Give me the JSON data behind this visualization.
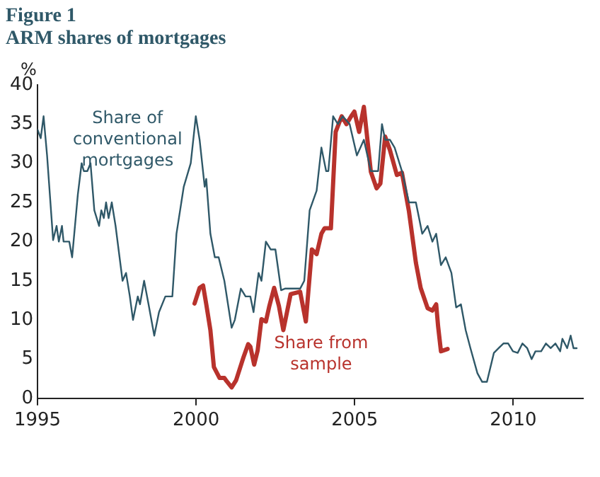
{
  "chart_data": {
    "type": "line",
    "title": "Figure 1",
    "subtitle": "ARM shares of mortgages",
    "ylabel": "%",
    "xlim": [
      1995,
      2012.2
    ],
    "xticks": [
      1995,
      2000,
      2005,
      2010
    ],
    "ylim": [
      0,
      40
    ],
    "yticks": [
      0,
      5,
      10,
      15,
      20,
      25,
      30,
      35,
      40
    ],
    "grid": false,
    "legend": false,
    "marker": "none",
    "line_style": "solid",
    "series": [
      {
        "name": "Share of conventional mortgages",
        "color": "#2f5868",
        "x": [
          1995.0,
          1995.1,
          1995.19,
          1995.3,
          1995.49,
          1995.6,
          1995.67,
          1995.77,
          1995.82,
          1996.0,
          1996.09,
          1996.27,
          1996.39,
          1996.46,
          1996.57,
          1996.67,
          1996.79,
          1996.94,
          1997.01,
          1997.09,
          1997.16,
          1997.24,
          1997.34,
          1997.46,
          1997.68,
          1997.79,
          1997.91,
          1998.01,
          1998.16,
          1998.23,
          1998.36,
          1998.5,
          1998.68,
          1998.83,
          1999.03,
          1999.25,
          1999.38,
          1999.61,
          1999.83,
          1999.99,
          2000.11,
          2000.27,
          2000.32,
          2000.45,
          2000.59,
          2000.71,
          2000.89,
          2001.12,
          2001.22,
          2001.41,
          2001.56,
          2001.71,
          2001.81,
          2001.97,
          2002.06,
          2002.2,
          2002.35,
          2002.5,
          2002.68,
          2002.8,
          2003.28,
          2003.41,
          2003.58,
          2003.8,
          2003.95,
          2004.1,
          2004.17,
          2004.32,
          2004.47,
          2004.62,
          2004.84,
          2005.07,
          2005.29,
          2005.51,
          2005.74,
          2005.86,
          2005.96,
          2006.11,
          2006.26,
          2006.49,
          2006.71,
          2006.93,
          2007.13,
          2007.3,
          2007.45,
          2007.57,
          2007.72,
          2007.87,
          2008.05,
          2008.2,
          2008.35,
          2008.5,
          2008.65,
          2008.87,
          2009.02,
          2009.17,
          2009.39,
          2009.54,
          2009.69,
          2009.84,
          2009.99,
          2010.14,
          2010.29,
          2010.44,
          2010.58,
          2010.7,
          2010.88,
          2011.03,
          2011.18,
          2011.33,
          2011.48,
          2011.55,
          2011.7,
          2011.81,
          2011.9,
          2012.0
        ],
        "values": [
          34.3,
          33.2,
          36,
          31,
          20.2,
          22,
          20,
          22,
          20,
          20,
          18,
          26,
          30,
          29,
          29,
          30,
          24,
          22,
          24,
          23,
          25,
          23,
          25,
          22,
          15,
          16,
          13,
          10,
          13,
          12,
          15,
          12,
          8,
          11,
          13,
          13,
          21,
          27,
          30,
          36,
          33,
          27,
          28,
          21,
          18,
          18,
          15,
          9,
          10,
          14,
          13,
          13,
          11,
          16,
          15,
          20,
          19,
          19,
          13.8,
          14,
          14,
          15,
          24,
          26.5,
          32,
          29,
          29,
          36,
          35,
          36,
          35,
          31,
          33,
          29,
          29,
          35,
          33,
          33,
          32,
          29,
          25,
          25,
          21,
          22,
          20,
          21,
          17,
          18,
          16,
          11.6,
          12,
          8.7,
          6.4,
          3.2,
          2.1,
          2.1,
          5.8,
          6.4,
          7,
          7,
          6,
          5.8,
          7,
          6.4,
          5,
          6,
          6,
          7,
          6.4,
          7,
          6,
          7.6,
          6.4,
          8,
          6.4,
          6.4
        ]
      },
      {
        "name": "Share from sample",
        "color": "#b8322c",
        "x": [
          1999.95,
          2000.11,
          2000.22,
          2000.32,
          2000.45,
          2000.56,
          2000.74,
          2000.89,
          2000.96,
          2001.12,
          2001.26,
          2001.49,
          2001.64,
          2001.71,
          2001.83,
          2001.94,
          2002.06,
          2002.2,
          2002.31,
          2002.46,
          2002.61,
          2002.75,
          2002.98,
          2003.28,
          2003.46,
          2003.65,
          2003.8,
          2003.95,
          2004.05,
          2004.25,
          2004.4,
          2004.59,
          2004.74,
          2004.89,
          2004.99,
          2005.14,
          2005.29,
          2005.51,
          2005.69,
          2005.81,
          2005.96,
          2006.11,
          2006.33,
          2006.49,
          2006.71,
          2006.93,
          2007.08,
          2007.3,
          2007.45,
          2007.57,
          2007.63,
          2007.72,
          2007.93
        ],
        "values": [
          12.1,
          14.1,
          14.4,
          12,
          8.7,
          4,
          2.6,
          2.6,
          2.2,
          1.4,
          2.3,
          5.2,
          6.9,
          6.6,
          4.3,
          6.1,
          10.1,
          9.8,
          11.8,
          14.1,
          11.8,
          8.7,
          13.3,
          13.6,
          9.8,
          19,
          18.4,
          21,
          21.7,
          21.7,
          34,
          36,
          35,
          36,
          36.6,
          34,
          37.2,
          28.9,
          26.8,
          27.4,
          33.4,
          31.7,
          28.5,
          28.8,
          23.9,
          17.3,
          14.1,
          11.5,
          11.2,
          12,
          9.2,
          6,
          6.3
        ]
      }
    ]
  }
}
